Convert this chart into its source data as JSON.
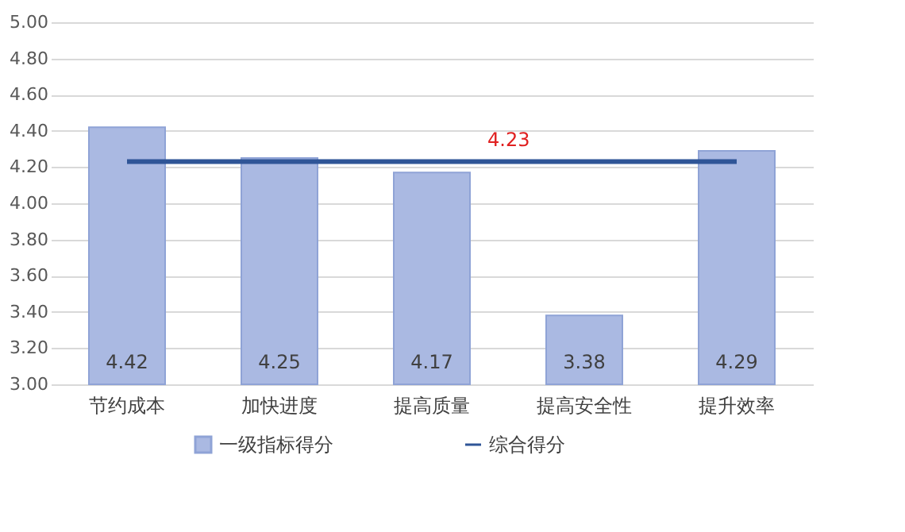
{
  "chart_data": {
    "type": "bar",
    "categories": [
      "节约成本",
      "加快进度",
      "提高质量",
      "提高安全性",
      "提升效率"
    ],
    "series": [
      {
        "name": "一级指标得分",
        "type": "bar",
        "color": "#aab9e2",
        "values": [
          4.42,
          4.25,
          4.17,
          3.38,
          4.29
        ],
        "data_labels": true
      },
      {
        "name": "综合得分",
        "type": "line",
        "color": "#2f5597",
        "values": [
          4.23,
          4.23,
          4.23,
          4.23,
          4.23
        ]
      }
    ],
    "ylim": [
      3,
      5
    ],
    "yticks": [
      {
        "value": 3,
        "label": "3.00"
      },
      {
        "value": 3.2,
        "label": "3.20"
      },
      {
        "value": 3.4,
        "label": "3.40"
      },
      {
        "value": 3.6,
        "label": "3.60"
      },
      {
        "value": 3.8,
        "label": "3.80"
      },
      {
        "value": 4,
        "label": "4.00"
      },
      {
        "value": 4.2,
        "label": "4.20"
      },
      {
        "value": 4.4,
        "label": "4.40"
      },
      {
        "value": 4.6,
        "label": "4.60"
      },
      {
        "value": 4.8,
        "label": "4.80"
      },
      {
        "value": 5,
        "label": "5.00"
      }
    ],
    "grid": "y",
    "legend": "bottom",
    "marker": "none",
    "annotations": [
      {
        "text": "4.23",
        "x": "提高质量",
        "y": 4.23
      }
    ]
  }
}
